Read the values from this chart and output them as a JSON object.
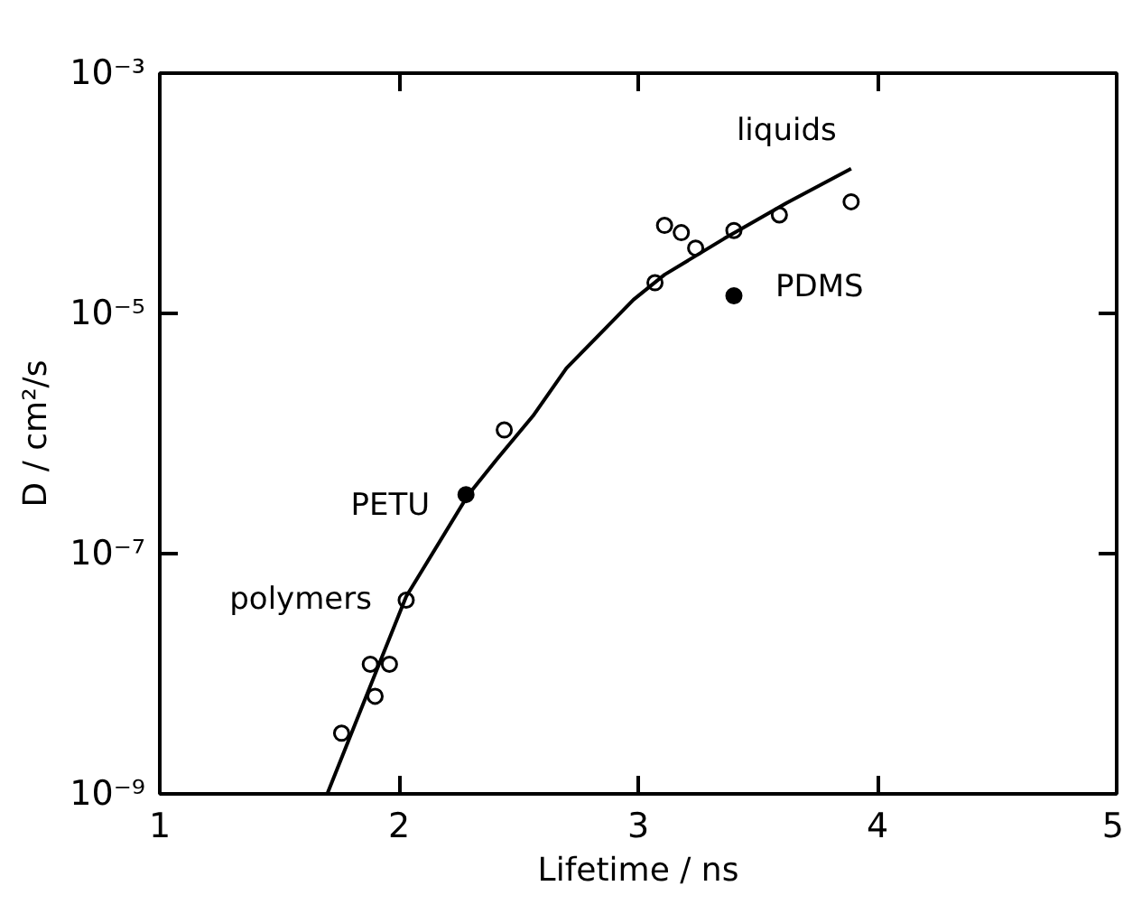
{
  "chart_data": {
    "type": "scatter",
    "xlabel": "Lifetime / ns",
    "ylabel": "D / cm²/s",
    "log": "y",
    "xlim": [
      1,
      5
    ],
    "xticks": [
      1,
      2,
      3,
      4,
      5
    ],
    "ylim": [
      1e-09,
      0.001
    ],
    "yticks": [
      {
        "value": 1e-09,
        "label": "10⁻⁹"
      },
      {
        "value": 1e-07,
        "label": "10⁻⁷"
      },
      {
        "value": 1e-05,
        "label": "10⁻⁵"
      },
      {
        "value": 0.001,
        "label": "10⁻³"
      }
    ],
    "grid": false,
    "marker": "circle",
    "series": [
      {
        "color": "#000000",
        "x": [
          1.76,
          1.88,
          1.96,
          1.9,
          2.03,
          2.44,
          3.07,
          3.11,
          3.18,
          3.24,
          3.4,
          3.59,
          3.89
        ],
        "values": [
          3.2e-09,
          1.2e-08,
          1.2e-08,
          6.5e-09,
          4.1e-08,
          1.07e-06,
          1.8e-05,
          5.4e-05,
          4.7e-05,
          3.5e-05,
          4.9e-05,
          6.6e-05,
          8.5e-05
        ]
      },
      {
        "color": "#000000",
        "x": [
          2.28,
          3.4
        ],
        "values": [
          3.1e-07,
          1.4e-05
        ]
      },
      {
        "type": "line",
        "color": "#000000",
        "marker": "none",
        "x": [
          1.7,
          1.85,
          2.03,
          2.29,
          2.42,
          2.56,
          2.7,
          2.86,
          2.98,
          3.11,
          3.36,
          3.62,
          3.89
        ],
        "values": [
          1e-09,
          5.6e-09,
          4.4e-08,
          3.1e-07,
          6.5e-07,
          1.4e-06,
          3.5e-06,
          7.4e-06,
          1.3e-05,
          2.1e-05,
          4.2e-05,
          8.3e-05,
          0.00016
        ]
      }
    ],
    "annotations": [
      {
        "text": "liquids",
        "x": 3.62,
        "y": 8.3e-05
      },
      {
        "text": "PDMS",
        "x": 3.4,
        "y": 1.4e-05
      },
      {
        "text": "PETU",
        "x": 2.28,
        "y": 3.1e-07
      },
      {
        "text": "polymers",
        "x": 2.03,
        "y": 4.1e-08
      }
    ]
  }
}
